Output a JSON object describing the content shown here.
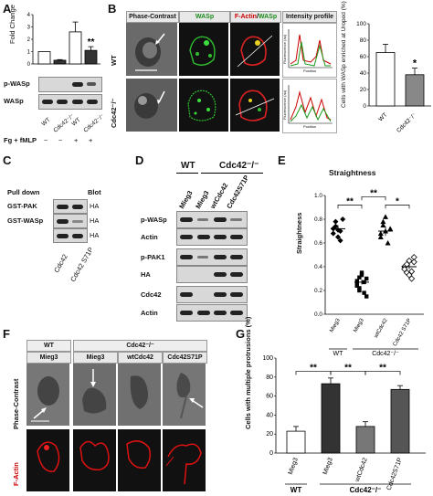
{
  "panels": {
    "A": {
      "label": "A",
      "ylabel": "Fold Change",
      "blots": [
        "p-WASp",
        "WASp"
      ],
      "lanes": [
        "WT",
        "Cdc42⁻/⁻",
        "WT",
        "Cdc42⁻/⁻"
      ],
      "treatment_label": "Fg + fMLP",
      "treatment": [
        "−",
        "−",
        "+",
        "+"
      ],
      "sig": "**"
    },
    "B": {
      "label": "B",
      "col_headers": [
        "Phase-Contrast",
        "WASp",
        "F-Actin/WASp",
        "Intensity profile"
      ],
      "fa_part": "F-Actin",
      "wasp_part": "WASp",
      "rows": [
        "WT",
        "Cdc42⁻/⁻"
      ],
      "profile_ylabel": "Fluorescence (au)",
      "profile_xlabel": "Position",
      "bar_ylabel": "Cells with WASp enriched at Uropod (%)",
      "sig": "*"
    },
    "C": {
      "label": "C",
      "pull_down": "Pull down",
      "blot": "Blot",
      "rows": [
        "GST-PAK",
        "GST-WASp",
        ""
      ],
      "blot_labels": [
        "HA",
        "HA",
        "HA"
      ],
      "lanes": [
        "Cdc42",
        "Cdc42 S71P"
      ]
    },
    "D": {
      "label": "D",
      "groups": [
        "WT",
        "Cdc42⁻/⁻"
      ],
      "lanes": [
        "Mieg3",
        "Mieg3",
        "wtCdc42",
        "Cdc42S71P"
      ],
      "blots": [
        "p-WASp",
        "Actin",
        "p-PAK1",
        "HA",
        "Cdc42",
        "Actin"
      ]
    },
    "E": {
      "label": "E",
      "title": "Straightness",
      "ylabel": "Straightness",
      "sigs": [
        "**",
        "**",
        "*"
      ],
      "groups": [
        "WT",
        "Cdc42⁻/⁻"
      ]
    },
    "F": {
      "label": "F",
      "groups": [
        "WT",
        "Cdc42⁻/⁻"
      ],
      "cols": [
        "Mieg3",
        "Mieg3",
        "wtCdc42",
        "Cdc42S71P"
      ],
      "rows": [
        "Phase-Contrast",
        "F-Actin"
      ]
    },
    "G": {
      "label": "G",
      "ylabel": "Cells with multiple protrusions (%)",
      "sigs": [
        "**",
        "**",
        "**"
      ],
      "groups": [
        "WT",
        "Cdc42⁻/⁻"
      ]
    }
  },
  "chart_data": [
    {
      "panel": "A",
      "type": "bar",
      "categories": [
        "WT",
        "Cdc42⁻/⁻",
        "WT",
        "Cdc42⁻/⁻"
      ],
      "values": [
        1.0,
        0.3,
        2.6,
        1.1
      ],
      "errors": [
        0,
        0.05,
        0.8,
        0.3
      ],
      "ylim": [
        0,
        4
      ],
      "yticks": [
        0,
        1,
        2,
        3,
        4
      ],
      "ylabel": "Fold Change",
      "colors": [
        "#ffffff",
        "#333333",
        "#ffffff",
        "#333333"
      ]
    },
    {
      "panel": "B",
      "type": "bar",
      "categories": [
        "WT",
        "Cdc42⁻/⁻"
      ],
      "values": [
        65,
        38
      ],
      "errors": [
        10,
        8
      ],
      "ylim": [
        0,
        100
      ],
      "yticks": [
        0,
        20,
        40,
        60,
        80,
        100
      ],
      "ylabel": "Cells with WASp enriched at Uropod (%)",
      "colors": [
        "#ffffff",
        "#888888"
      ]
    },
    {
      "panel": "E",
      "type": "scatter",
      "categories": [
        "Mieg3",
        "Mieg3",
        "wtCdc42",
        "Cdc42 S71P"
      ],
      "ylim": [
        0,
        1.0
      ],
      "yticks": [
        0.0,
        0.2,
        0.4,
        0.6,
        0.8,
        1.0
      ],
      "ylabel": "Straightness",
      "title": "Straightness",
      "series": [
        {
          "values": [
            0.72,
            0.78,
            0.65,
            0.7,
            0.8,
            0.68,
            0.74,
            0.71,
            0.62
          ],
          "marker": "diamond",
          "mean": 0.72,
          "sem": 0.03
        },
        {
          "values": [
            0.28,
            0.22,
            0.35,
            0.18,
            0.3,
            0.25,
            0.2,
            0.33,
            0.27,
            0.15,
            0.24,
            0.31
          ],
          "marker": "square",
          "mean": 0.27,
          "sem": 0.02
        },
        {
          "values": [
            0.68,
            0.75,
            0.82,
            0.6,
            0.72,
            0.65,
            0.78,
            0.7
          ],
          "marker": "triangle",
          "mean": 0.7,
          "sem": 0.04
        },
        {
          "values": [
            0.4,
            0.35,
            0.45,
            0.3,
            0.48,
            0.38,
            0.42,
            0.33,
            0.36,
            0.44
          ],
          "marker": "diamond-open",
          "mean": 0.4,
          "sem": 0.02
        }
      ]
    },
    {
      "panel": "G",
      "type": "bar",
      "categories": [
        "Mieg3",
        "Mieg3",
        "wtCdc42",
        "Cdc42S71P"
      ],
      "values": [
        23,
        73,
        28,
        67
      ],
      "errors": [
        5,
        6,
        5,
        4
      ],
      "ylim": [
        0,
        100
      ],
      "yticks": [
        0,
        20,
        40,
        60,
        80,
        100
      ],
      "ylabel": "Cells with multiple protrusions (%)",
      "colors": [
        "#ffffff",
        "#333333",
        "#777777",
        "#555555"
      ]
    }
  ]
}
